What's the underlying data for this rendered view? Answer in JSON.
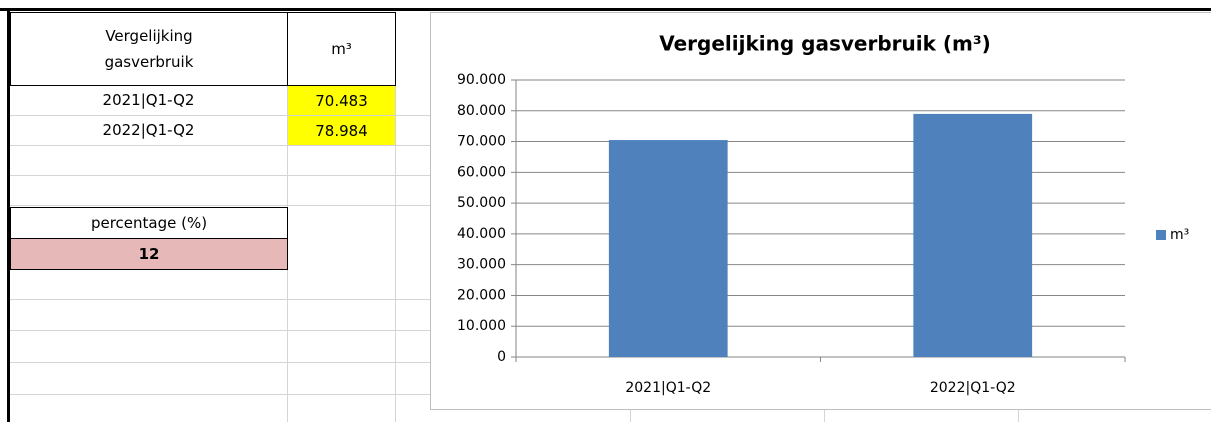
{
  "table": {
    "header": [
      "Vergelijking gasverbruik",
      "m³"
    ],
    "rows": [
      [
        "2021|Q1-Q2",
        "70.483"
      ],
      [
        "2022|Q1-Q2",
        "78.984"
      ]
    ],
    "percentage_label": "percentage (%)",
    "percentage": 12
  },
  "chart_data": {
    "type": "bar",
    "title": "Vergelijking gasverbruik (m³)",
    "categories": [
      "2021|Q1-Q2",
      "2022|Q1-Q2"
    ],
    "series": [
      {
        "name": "m³",
        "color": "#4f81bd",
        "values": [
          70483,
          78984
        ]
      }
    ],
    "ylim": [
      0,
      90000
    ],
    "yticks": [
      0,
      {
        "value": 10000,
        "label": "10.000"
      },
      {
        "value": 20000,
        "label": "20.000"
      },
      {
        "value": 30000,
        "label": "30.000"
      },
      {
        "value": 40000,
        "label": "40.000"
      },
      {
        "value": 50000,
        "label": "50.000"
      },
      {
        "value": 60000,
        "label": "60.000"
      },
      {
        "value": 70000,
        "label": "70.000"
      },
      {
        "value": 80000,
        "label": "80.000"
      },
      {
        "value": 90000,
        "label": "90.000"
      }
    ],
    "grid": true,
    "legend": "right"
  }
}
